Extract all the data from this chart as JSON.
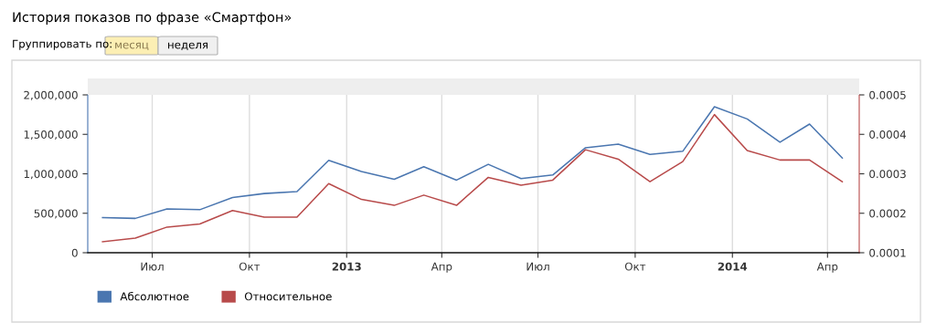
{
  "chart_data": {
    "type": "line",
    "title": "История показов по фразе «Смартфон»",
    "annotations": [
      "Группировать по:",
      "месяц",
      "неделя"
    ],
    "x": [
      "2012-05-15",
      "2012-06-15",
      "2012-07-15",
      "2012-08-15",
      "2012-09-15",
      "2012-10-15",
      "2012-11-15",
      "2012-12-15",
      "2013-01-15",
      "2013-02-15",
      "2013-03-15",
      "2013-04-15",
      "2013-05-15",
      "2013-06-15",
      "2013-07-15",
      "2013-08-15",
      "2013-09-15",
      "2013-10-15",
      "2013-11-15",
      "2013-12-15",
      "2014-01-15",
      "2014-02-15",
      "2014-03-15",
      "2014-04-15"
    ],
    "series": [
      {
        "name": "Абсолютное",
        "color": "#4a76b0",
        "values": [
          445000,
          435000,
          555000,
          545000,
          700000,
          750000,
          775000,
          1170000,
          1030000,
          930000,
          1090000,
          920000,
          1120000,
          940000,
          985000,
          1330000,
          1375000,
          1245000,
          1285000,
          1850000,
          1695000,
          1400000,
          1630000,
          1200000
        ]
      },
      {
        "name": "Относительное",
        "color": "#b84a4a",
        "axis": "y2",
        "values": [
          0.000128,
          0.000137,
          0.000165,
          0.000173,
          0.000207,
          0.00019,
          0.00019,
          0.000275,
          0.000235,
          0.00022,
          0.000246,
          0.00022,
          0.000291,
          0.000271,
          0.000284,
          0.000361,
          0.000337,
          0.00028,
          0.000331,
          0.00045,
          0.000359,
          0.000335,
          0.000335,
          0.00028
        ]
      }
    ],
    "xlim": [
      "2012-05-01",
      "2014-05-01"
    ],
    "xticks": [
      {
        "value": "2012-07-01",
        "label": "Июл"
      },
      {
        "value": "2012-10-01",
        "label": "Окт"
      },
      {
        "value": "2013-01-01",
        "label": "2013"
      },
      {
        "value": "2013-04-01",
        "label": "Апр"
      },
      {
        "value": "2013-07-01",
        "label": "Июл"
      },
      {
        "value": "2013-10-01",
        "label": "Окт"
      },
      {
        "value": "2014-01-01",
        "label": "2014"
      },
      {
        "value": "2014-04-01",
        "label": "Апр"
      }
    ],
    "ylim": [
      0,
      2000000
    ],
    "yticks": [
      0,
      {
        "value": 500000,
        "label": "500,000"
      },
      {
        "value": 1000000,
        "label": "1,000,000"
      },
      {
        "value": 1500000,
        "label": "1,500,000"
      },
      {
        "value": 2000000,
        "label": "2,000,000"
      }
    ],
    "y2lim": [
      0.0001,
      0.0005
    ],
    "y2ticks": [
      0.0001,
      0.0002,
      0.0003,
      0.0004,
      0.0005
    ],
    "grid": "x",
    "legend": "bottom left",
    "marker": "none",
    "line_style": "solid"
  }
}
